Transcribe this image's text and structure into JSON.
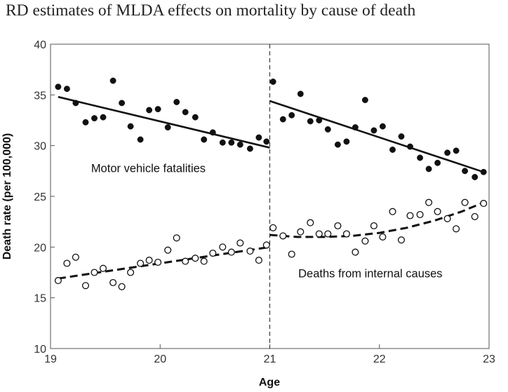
{
  "title": "RD estimates of MLDA effects on mortality by cause of death",
  "chart_data": {
    "type": "scatter",
    "title": "RD estimates of MLDA effects on mortality by cause of death",
    "xlabel": "Age",
    "ylabel": "Death rate (per 100,000)",
    "xlim": [
      19,
      23
    ],
    "ylim": [
      10,
      40
    ],
    "xticks": [
      19,
      20,
      21,
      22,
      23
    ],
    "yticks": [
      10,
      15,
      20,
      25,
      30,
      35,
      40
    ],
    "cutoff": 21,
    "grid": false,
    "series": [
      {
        "name": "Motor vehicle fatalities",
        "marker": "filled",
        "color": "#111111",
        "x": [
          19.07,
          19.15,
          19.23,
          19.32,
          19.4,
          19.48,
          19.57,
          19.65,
          19.73,
          19.82,
          19.9,
          19.98,
          20.07,
          20.15,
          20.23,
          20.32,
          20.4,
          20.48,
          20.57,
          20.65,
          20.73,
          20.82,
          20.9
        ],
        "y": [
          35.8,
          35.6,
          34.2,
          32.3,
          32.7,
          32.8,
          36.4,
          34.2,
          31.9,
          30.6,
          33.5,
          33.6,
          31.8,
          34.3,
          33.3,
          32.8,
          30.6,
          31.3,
          30.3,
          30.3,
          30.1,
          29.7,
          30.8
        ],
        "fit": {
          "style": "solid",
          "x": [
            19.07,
            21.0
          ],
          "y": [
            34.8,
            29.8
          ]
        }
      },
      {
        "name": "Motor vehicle fatalities",
        "marker": "filled",
        "color": "#111111",
        "x": [
          20.97,
          21.03,
          21.12,
          21.2,
          21.28,
          21.37,
          21.45,
          21.53,
          21.62,
          21.7,
          21.78,
          21.87,
          21.95,
          22.03,
          22.12,
          22.2,
          22.28,
          22.37,
          22.45,
          22.53,
          22.62,
          22.7,
          22.78,
          22.87,
          22.95
        ],
        "y": [
          30.4,
          36.3,
          32.6,
          33.0,
          35.1,
          32.4,
          32.5,
          31.6,
          30.1,
          30.4,
          31.8,
          34.5,
          31.5,
          31.9,
          29.6,
          30.9,
          29.9,
          28.8,
          27.7,
          28.3,
          29.3,
          29.5,
          27.5,
          26.9,
          27.4
        ],
        "fit": {
          "style": "solid",
          "x": [
            21.0,
            22.95
          ],
          "y": [
            34.4,
            27.4
          ]
        }
      },
      {
        "name": "Deaths from internal causes",
        "marker": "hollow",
        "color": "#111111",
        "x": [
          19.07,
          19.15,
          19.23,
          19.32,
          19.4,
          19.48,
          19.57,
          19.65,
          19.73,
          19.82,
          19.9,
          19.98,
          20.07,
          20.15,
          20.23,
          20.32,
          20.4,
          20.48,
          20.57,
          20.65,
          20.73,
          20.82,
          20.9,
          20.97
        ],
        "y": [
          16.7,
          18.4,
          19.0,
          16.2,
          17.5,
          17.9,
          16.5,
          16.1,
          17.5,
          18.4,
          18.7,
          18.5,
          19.7,
          20.9,
          18.6,
          18.9,
          18.6,
          19.4,
          20.0,
          19.5,
          20.4,
          19.6,
          18.7,
          20.2
        ],
        "fit": {
          "style": "dashed",
          "x": [
            19.07,
            19.5,
            20.0,
            20.5,
            21.0
          ],
          "y": [
            16.9,
            17.6,
            18.4,
            19.2,
            20.0
          ]
        }
      },
      {
        "name": "Deaths from internal causes",
        "marker": "hollow",
        "color": "#111111",
        "x": [
          21.03,
          21.12,
          21.2,
          21.28,
          21.37,
          21.45,
          21.53,
          21.62,
          21.7,
          21.78,
          21.87,
          21.95,
          22.03,
          22.12,
          22.2,
          22.28,
          22.37,
          22.45,
          22.53,
          22.62,
          22.7,
          22.78,
          22.87,
          22.95
        ],
        "y": [
          21.9,
          21.1,
          19.3,
          21.5,
          22.4,
          21.3,
          21.3,
          22.1,
          21.3,
          19.5,
          20.6,
          22.1,
          21.0,
          23.5,
          20.7,
          23.1,
          23.2,
          24.4,
          23.5,
          22.8,
          21.8,
          24.4,
          23.0,
          24.3
        ],
        "fit": {
          "style": "dashed",
          "x": [
            21.0,
            21.25,
            21.5,
            21.75,
            22.0,
            22.25,
            22.5,
            22.75,
            22.95
          ],
          "y": [
            21.2,
            21.0,
            21.0,
            21.1,
            21.4,
            21.9,
            22.6,
            23.5,
            24.4
          ]
        }
      }
    ],
    "annotations": [
      {
        "text": "Motor vehicle fatalities",
        "x": 19.37,
        "y": 27.4
      },
      {
        "text": "Deaths from internal causes",
        "x": 21.26,
        "y": 17.0
      }
    ]
  }
}
